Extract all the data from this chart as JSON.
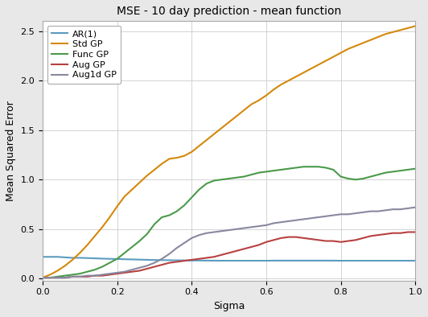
{
  "title": "MSE - 10 day prediction - mean function",
  "xlabel": "Sigma",
  "ylabel": "Mean Squared Error",
  "sigma": [
    0.0,
    0.02,
    0.04,
    0.06,
    0.08,
    0.1,
    0.12,
    0.14,
    0.16,
    0.18,
    0.2,
    0.22,
    0.24,
    0.26,
    0.28,
    0.3,
    0.32,
    0.34,
    0.36,
    0.38,
    0.4,
    0.42,
    0.44,
    0.46,
    0.48,
    0.5,
    0.52,
    0.54,
    0.56,
    0.58,
    0.6,
    0.62,
    0.64,
    0.66,
    0.68,
    0.7,
    0.72,
    0.74,
    0.76,
    0.78,
    0.8,
    0.82,
    0.84,
    0.86,
    0.88,
    0.9,
    0.92,
    0.94,
    0.96,
    0.98,
    1.0
  ],
  "AR1": [
    0.22,
    0.22,
    0.22,
    0.215,
    0.21,
    0.21,
    0.208,
    0.205,
    0.202,
    0.2,
    0.198,
    0.196,
    0.194,
    0.192,
    0.19,
    0.188,
    0.187,
    0.186,
    0.185,
    0.184,
    0.183,
    0.183,
    0.182,
    0.182,
    0.181,
    0.181,
    0.181,
    0.181,
    0.181,
    0.181,
    0.181,
    0.182,
    0.182,
    0.182,
    0.182,
    0.182,
    0.182,
    0.182,
    0.182,
    0.182,
    0.181,
    0.181,
    0.181,
    0.181,
    0.181,
    0.181,
    0.181,
    0.181,
    0.181,
    0.181,
    0.181
  ],
  "StdGP": [
    0.01,
    0.04,
    0.08,
    0.13,
    0.19,
    0.26,
    0.34,
    0.43,
    0.52,
    0.62,
    0.73,
    0.83,
    0.9,
    0.97,
    1.04,
    1.1,
    1.16,
    1.21,
    1.22,
    1.24,
    1.28,
    1.34,
    1.4,
    1.46,
    1.52,
    1.58,
    1.64,
    1.7,
    1.76,
    1.8,
    1.85,
    1.91,
    1.96,
    2.0,
    2.04,
    2.08,
    2.12,
    2.16,
    2.2,
    2.24,
    2.28,
    2.32,
    2.35,
    2.38,
    2.41,
    2.44,
    2.47,
    2.49,
    2.51,
    2.53,
    2.55
  ],
  "FuncGP": [
    0.01,
    0.01,
    0.02,
    0.03,
    0.04,
    0.05,
    0.07,
    0.09,
    0.12,
    0.16,
    0.2,
    0.26,
    0.32,
    0.38,
    0.45,
    0.55,
    0.62,
    0.64,
    0.68,
    0.74,
    0.82,
    0.9,
    0.96,
    0.99,
    1.0,
    1.01,
    1.02,
    1.03,
    1.05,
    1.07,
    1.08,
    1.09,
    1.1,
    1.11,
    1.12,
    1.13,
    1.13,
    1.13,
    1.12,
    1.1,
    1.03,
    1.01,
    1.0,
    1.01,
    1.03,
    1.05,
    1.07,
    1.08,
    1.09,
    1.1,
    1.11
  ],
  "AugGP": [
    0.01,
    0.01,
    0.01,
    0.01,
    0.02,
    0.02,
    0.02,
    0.03,
    0.03,
    0.04,
    0.05,
    0.06,
    0.07,
    0.08,
    0.1,
    0.12,
    0.14,
    0.16,
    0.17,
    0.18,
    0.19,
    0.2,
    0.21,
    0.22,
    0.24,
    0.26,
    0.28,
    0.3,
    0.32,
    0.34,
    0.37,
    0.39,
    0.41,
    0.42,
    0.42,
    0.41,
    0.4,
    0.39,
    0.38,
    0.38,
    0.37,
    0.38,
    0.39,
    0.41,
    0.43,
    0.44,
    0.45,
    0.46,
    0.46,
    0.47,
    0.47
  ],
  "Aug1dGP": [
    0.01,
    0.01,
    0.01,
    0.01,
    0.02,
    0.02,
    0.03,
    0.03,
    0.04,
    0.05,
    0.06,
    0.07,
    0.09,
    0.11,
    0.13,
    0.16,
    0.2,
    0.25,
    0.31,
    0.36,
    0.41,
    0.44,
    0.46,
    0.47,
    0.48,
    0.49,
    0.5,
    0.51,
    0.52,
    0.53,
    0.54,
    0.56,
    0.57,
    0.58,
    0.59,
    0.6,
    0.61,
    0.62,
    0.63,
    0.64,
    0.65,
    0.65,
    0.66,
    0.67,
    0.68,
    0.68,
    0.69,
    0.7,
    0.7,
    0.71,
    0.72
  ],
  "colors": {
    "AR1": "#5b9cc0",
    "StdGP": "#d4880a",
    "FuncGP": "#4a9a4a",
    "AugGP": "#b84040",
    "Aug1dGP": "#8888a0"
  },
  "legend_labels": [
    "AR(1)",
    "Std GP",
    "Func GP",
    "Aug GP",
    "Aug1d GP"
  ],
  "xlim": [
    0.0,
    1.0
  ],
  "ylim": [
    -0.02,
    2.6
  ],
  "yticks": [
    0.0,
    0.5,
    1.0,
    1.5,
    2.0,
    2.5
  ],
  "xticks": [
    0.0,
    0.2,
    0.4,
    0.6,
    0.8,
    1.0
  ],
  "fig_facecolor": "#e8e8e8",
  "ax_facecolor": "#ffffff",
  "title_fontsize": 10,
  "label_fontsize": 9,
  "tick_fontsize": 8,
  "legend_fontsize": 8,
  "linewidth": 1.5
}
